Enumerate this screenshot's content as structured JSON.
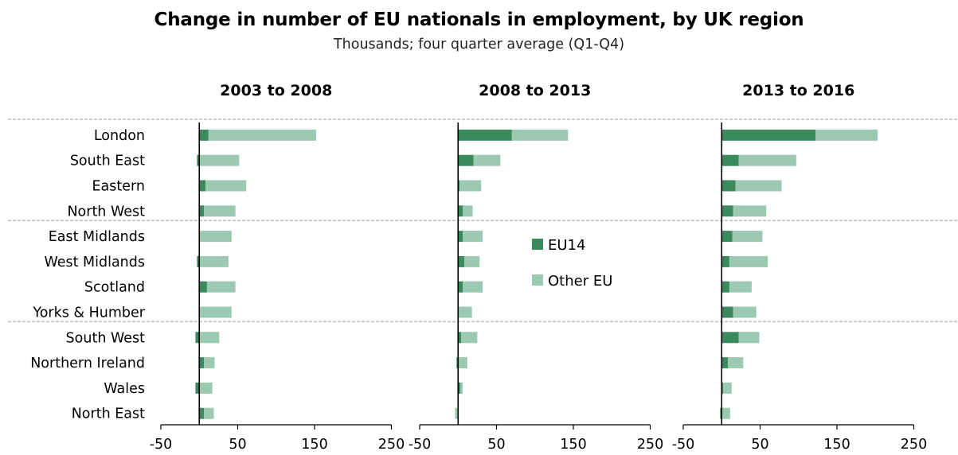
{
  "chart_data": {
    "type": "bar",
    "stacked": true,
    "orientation": "horizontal",
    "title": "Change in number of EU nationals in employment, by UK region",
    "subtitle": "Thousands; four quarter average (Q1-Q4)",
    "categories": [
      "London",
      "South East",
      "Eastern",
      "North West",
      "East Midlands",
      "West Midlands",
      "Scotland",
      "Yorks & Humber",
      "South West",
      "Northern Ireland",
      "Wales",
      "North East"
    ],
    "xlim": [
      -50,
      250
    ],
    "xticks": [
      -50,
      50,
      150,
      250
    ],
    "legend": {
      "position": "center",
      "entries": [
        "EU14",
        "Other EU"
      ]
    },
    "colors": {
      "EU14": "#3a8a5e",
      "Other EU": "#9cc9b1"
    },
    "panels": [
      {
        "title": "2003 to 2008",
        "series": [
          {
            "name": "EU14",
            "values": [
              12,
              -3,
              8,
              6,
              1,
              -3,
              10,
              1,
              -5,
              6,
              -5,
              6
            ]
          },
          {
            "name": "Other EU",
            "values": [
              140,
              52,
              53,
              41,
              41,
              38,
              37,
              41,
              26,
              14,
              17,
              13
            ]
          }
        ]
      },
      {
        "title": "2008 to 2013",
        "series": [
          {
            "name": "EU14",
            "values": [
              70,
              20,
              2,
              6,
              6,
              8,
              6,
              1,
              4,
              -2,
              3,
              -1
            ]
          },
          {
            "name": "Other EU",
            "values": [
              73,
              35,
              28,
              13,
              26,
              20,
              26,
              17,
              21,
              12,
              3,
              -3
            ]
          }
        ]
      },
      {
        "title": "2013 to 2016",
        "series": [
          {
            "name": "EU14",
            "values": [
              122,
              22,
              18,
              15,
              14,
              10,
              10,
              15,
              22,
              8,
              2,
              -2
            ]
          },
          {
            "name": "Other EU",
            "values": [
              81,
              75,
              60,
              43,
              39,
              50,
              29,
              30,
              27,
              20,
              11,
              11
            ]
          }
        ]
      }
    ]
  }
}
